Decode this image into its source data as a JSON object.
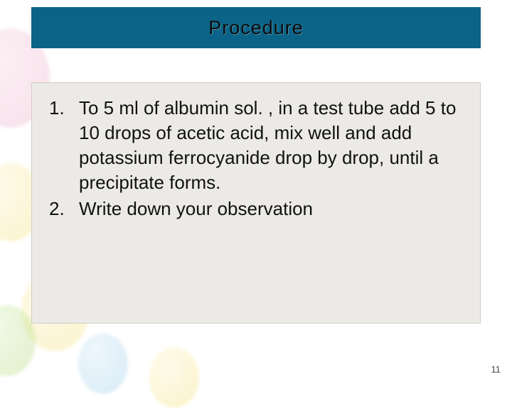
{
  "slide": {
    "title": "Procedure",
    "pageNumber": "11",
    "titleBar": {
      "background": "#0b6487",
      "textColor": "#0a0a0a",
      "fontSize": 27
    },
    "contentCard": {
      "background": "#eceae6",
      "borderColor": "#cfccc5",
      "fontSize": 26,
      "textColor": "#111111"
    },
    "items": [
      "To 5 ml of albumin sol. , in a test tube add 5 to 10 drops of acetic acid, mix well and add potassium ferrocyanide drop by drop, until a precipitate forms.",
      "Write down your observation"
    ],
    "decorations": {
      "balloonColors": {
        "pink": "#e8a5c3",
        "yellow": "#f3df6a",
        "green": "#a9d46c",
        "blue": "#8fc6e6"
      }
    }
  }
}
